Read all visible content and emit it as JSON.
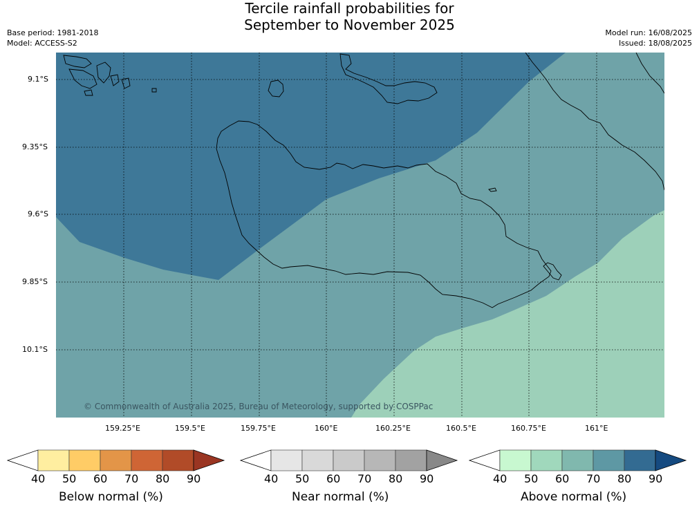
{
  "header": {
    "title_line1": "Tercile rainfall probabilities for",
    "title_line2": "September to November 2025",
    "base_period": "Base period: 1981-2018",
    "model": "Model: ACCESS-S2",
    "model_run": "Model run: 16/08/2025",
    "issued": "Issued: 18/08/2025"
  },
  "map": {
    "lat_labels": [
      "9.1°S",
      "9.35°S",
      "9.6°S",
      "9.85°S",
      "10.1°S"
    ],
    "lon_labels": [
      "159.25°E",
      "159.5°E",
      "159.75°E",
      "160°E",
      "160.25°E",
      "160.5°E",
      "160.75°E",
      "161°E"
    ],
    "credit": "© Commonwealth of Australia 2025, Bureau of Meteorology, supported by COSPPac",
    "zone_colors": {
      "above_80": "#3e7898",
      "above_70": "#6fa3a8",
      "above_60": "#9dd0b9"
    }
  },
  "colorbars": [
    {
      "title": "Below normal (%)",
      "ticks": [
        "40",
        "50",
        "60",
        "70",
        "80",
        "90"
      ],
      "colors": [
        "#ffffff",
        "#ffeea0",
        "#ffcc66",
        "#e39548",
        "#cf6535",
        "#b14b28",
        "#9a3522"
      ]
    },
    {
      "title": "Near normal (%)",
      "ticks": [
        "40",
        "50",
        "60",
        "70",
        "80",
        "90"
      ],
      "colors": [
        "#ffffff",
        "#e6e6e6",
        "#d9d9d9",
        "#cacaca",
        "#b7b7b7",
        "#a2a2a2",
        "#888888"
      ]
    },
    {
      "title": "Above normal (%)",
      "ticks": [
        "40",
        "50",
        "60",
        "70",
        "80",
        "90"
      ],
      "colors": [
        "#ffffff",
        "#c8f8d0",
        "#a0d8bc",
        "#80b8ae",
        "#5e98a4",
        "#336b92",
        "#154a80"
      ]
    }
  ]
}
